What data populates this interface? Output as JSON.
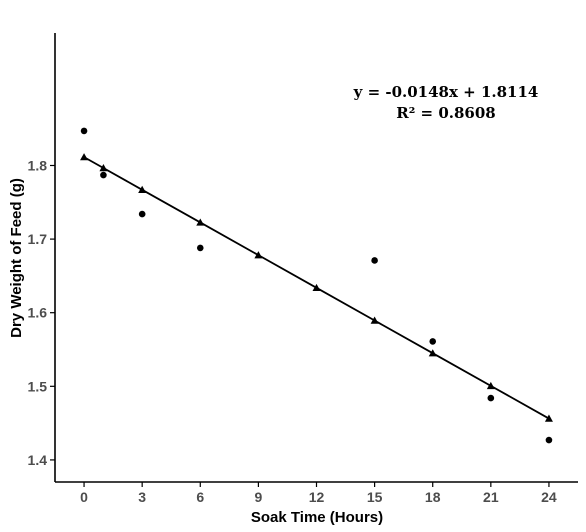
{
  "chart_data": {
    "type": "scatter",
    "xlabel": "Soak Time (Hours)",
    "ylabel": "Dry Weight of Feed (g)",
    "xlim": [
      -1.5,
      25.5
    ],
    "ylim": [
      1.37,
      1.98
    ],
    "xticks": [
      0,
      3,
      6,
      9,
      12,
      15,
      18,
      21,
      24
    ],
    "yticks": [
      1.4,
      1.5,
      1.6,
      1.7,
      1.8
    ],
    "ytick_labels": [
      "1.4",
      "1.5",
      "1.6",
      "1.7",
      "1.8"
    ],
    "grid": false,
    "legend": "none",
    "series": [
      {
        "marker": "circle",
        "color": "#000000",
        "x": [
          0,
          1,
          3,
          6,
          15,
          18,
          21,
          24
        ],
        "y": [
          1.847,
          1.787,
          1.734,
          1.688,
          1.671,
          1.561,
          1.484,
          1.427
        ]
      },
      {
        "marker": "triangle",
        "line": true,
        "color": "#000000",
        "x": [
          0,
          1,
          3,
          6,
          9,
          12,
          15,
          18,
          21,
          24
        ],
        "y": [
          1.8114,
          1.7966,
          1.767,
          1.7226,
          1.6782,
          1.6338,
          1.5894,
          1.545,
          1.5006,
          1.4562
        ]
      }
    ],
    "annotations": [
      {
        "text": "y = -0.0148x + 1.8114"
      },
      {
        "text": "R² = 0.8608"
      }
    ]
  }
}
